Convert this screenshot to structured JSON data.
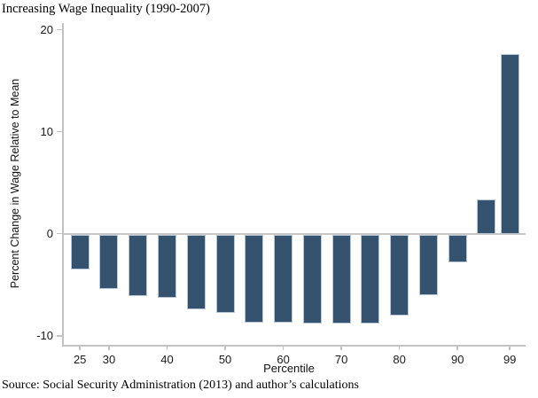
{
  "title": "Increasing Wage Inequality (1990-2007)",
  "source": "Source: Social Security Administration (2013) and author’s calculations",
  "chart_data": {
    "type": "bar",
    "title": "Increasing Wage Inequality (1990-2007)",
    "xlabel": "Percentile",
    "ylabel": "Percent Change in Wage Relative to Mean",
    "categories": [
      25,
      30,
      35,
      40,
      45,
      50,
      55,
      60,
      65,
      70,
      75,
      80,
      85,
      90,
      95,
      99
    ],
    "values": [
      -3.4,
      -5.3,
      -6.0,
      -6.2,
      -7.3,
      -7.7,
      -8.6,
      -8.6,
      -8.7,
      -8.7,
      -8.7,
      -7.9,
      -5.9,
      -2.7,
      3.4,
      17.6
    ],
    "ylim": [
      -10,
      20
    ],
    "yticks": [
      20,
      10,
      0,
      -10
    ],
    "xticks": [
      25,
      30,
      40,
      50,
      60,
      70,
      80,
      90,
      99
    ],
    "x_scale": "linear",
    "grid": "zero-line-only",
    "legend_position": "none",
    "bar_color": "#35536e",
    "bar_border_color": "#b9c7d6",
    "axis_color": "#c2c2c2",
    "source_note": "Source: Social Security Administration (2013) and author’s calculations"
  }
}
